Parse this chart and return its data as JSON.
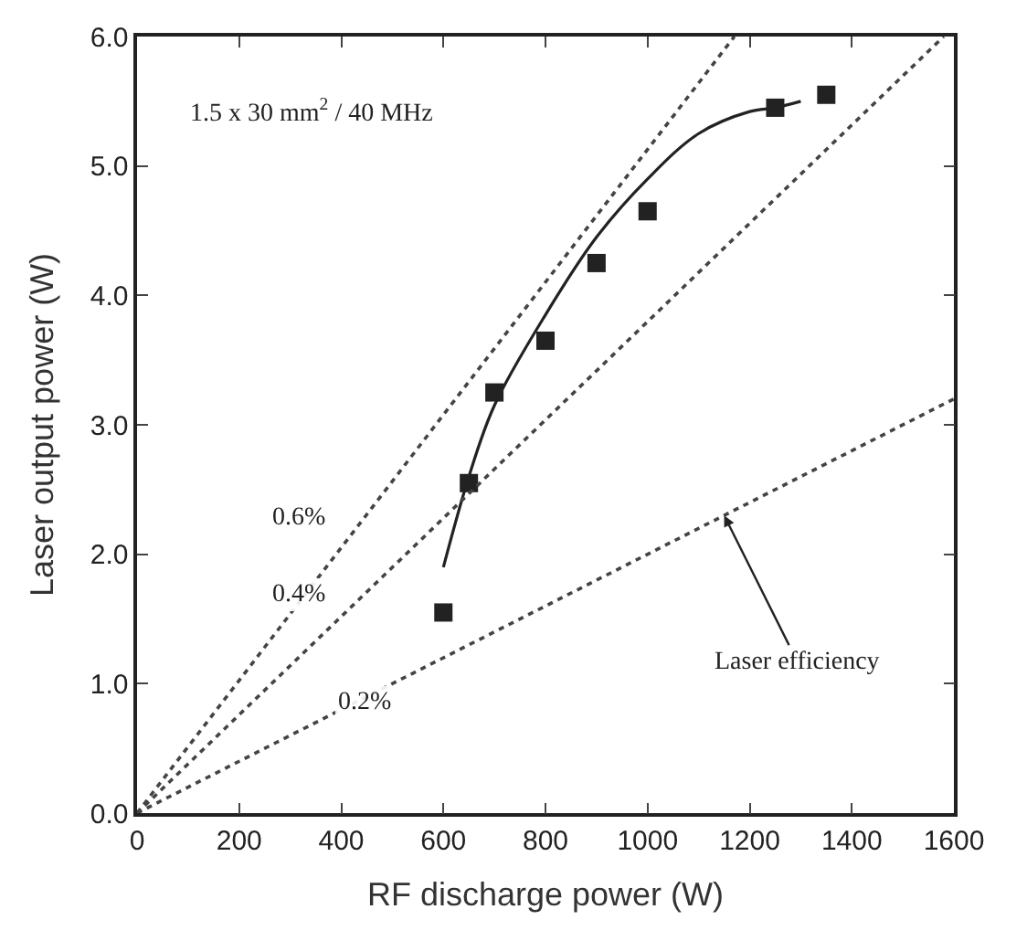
{
  "chart_data": {
    "type": "scatter",
    "xlabel": "RF discharge power (W)",
    "ylabel": "Laser output power (W)",
    "xlim": [
      0,
      1600
    ],
    "ylim": [
      0,
      6.0
    ],
    "xticks": [
      0,
      200,
      400,
      600,
      800,
      1000,
      1200,
      1400,
      1600
    ],
    "yticks": [
      {
        "value": 0,
        "label": "0.0"
      },
      {
        "value": 1,
        "label": "1.0"
      },
      {
        "value": 2,
        "label": "2.0"
      },
      {
        "value": 3,
        "label": "3.0"
      },
      {
        "value": 4,
        "label": "4.0"
      },
      {
        "value": 5,
        "label": "5.0"
      },
      {
        "value": 6,
        "label": "6.0"
      }
    ],
    "series": [
      {
        "marker": "square",
        "color": "#222222",
        "x": [
          600,
          650,
          700,
          800,
          900,
          1000,
          1250,
          1350
        ],
        "values": [
          1.55,
          2.55,
          3.25,
          3.65,
          4.25,
          4.65,
          5.45,
          5.55
        ]
      },
      {
        "type": "line",
        "marker": "none",
        "line_style": "solid",
        "color": "#222222",
        "x": [
          600,
          650,
          700,
          800,
          900,
          1000,
          1100,
          1200,
          1250,
          1300
        ],
        "values": [
          1.9,
          2.6,
          3.15,
          3.85,
          4.45,
          4.9,
          5.25,
          5.42,
          5.45,
          5.5
        ]
      },
      {
        "type": "line",
        "marker": "none",
        "line_style": "dotted",
        "color": "#444444",
        "x": [
          0,
          1170
        ],
        "values": [
          0,
          6.0
        ]
      },
      {
        "type": "line",
        "marker": "none",
        "line_style": "dotted",
        "color": "#444444",
        "x": [
          0,
          1580
        ],
        "values": [
          0,
          6.0
        ]
      },
      {
        "type": "line",
        "marker": "none",
        "line_style": "dotted",
        "color": "#444444",
        "x": [
          0,
          1600
        ],
        "values": [
          0,
          3.2
        ]
      }
    ],
    "annotations": [
      "1.5 x 30 mm$^{2}$ / 40 MHz",
      "0.6%",
      "0.4%",
      "0.2%",
      {
        "text": "Laser efficiency",
        "x": 1150,
        "y": 2.3
      }
    ]
  }
}
